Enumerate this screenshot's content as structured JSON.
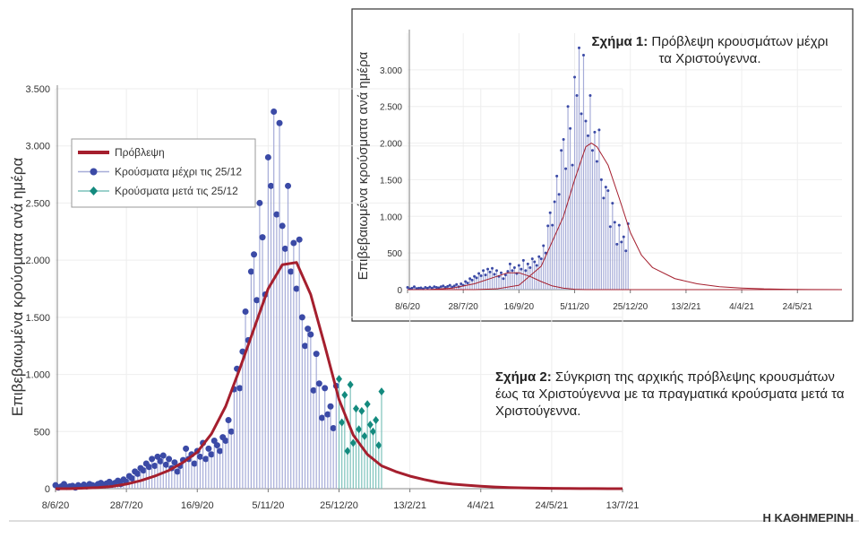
{
  "chart_data": [
    {
      "type": "line",
      "y_label": "Επιβεβαιωμένα κρούσματα ανά ημέρα",
      "annotation_label": "Σχήμα 2:",
      "annotation": "Σύγκριση της αρχικής πρόβλεψης κρουσμάτων έως τα Χριστούγεννα με τα πραγματικά κρούσματα μετά τα Χριστούγεννα.",
      "xlim": [
        0,
        400
      ],
      "xticks": [
        {
          "value": 0,
          "label": "8/6/20"
        },
        {
          "value": 50,
          "label": "28/7/20"
        },
        {
          "value": 100,
          "label": "16/9/20"
        },
        {
          "value": 150,
          "label": "5/11/20"
        },
        {
          "value": 200,
          "label": "25/12/20"
        },
        {
          "value": 250,
          "label": "13/2/21"
        },
        {
          "value": 300,
          "label": "4/4/21"
        },
        {
          "value": 350,
          "label": "24/5/21"
        },
        {
          "value": 400,
          "label": "13/7/21"
        }
      ],
      "ylim": [
        0,
        3500
      ],
      "yticks": [
        0,
        500,
        {
          "value": 1000,
          "label": "1.000"
        },
        {
          "value": 1500,
          "label": "1.500"
        },
        {
          "value": 2000,
          "label": "2.000"
        },
        {
          "value": 2500,
          "label": "2.500"
        },
        {
          "value": 3000,
          "label": "3.000"
        },
        {
          "value": 3500,
          "label": "3.500"
        }
      ],
      "grid": true,
      "legend": "upper-left",
      "series": [
        {
          "name": "Πρόβλεψη",
          "kind": "line",
          "color": "#a51f2e",
          "x": [
            0,
            10,
            20,
            30,
            40,
            50,
            60,
            70,
            80,
            90,
            100,
            110,
            120,
            130,
            140,
            150,
            160,
            170,
            180,
            190,
            200,
            210,
            220,
            230,
            240,
            250,
            260,
            270,
            280,
            290,
            300,
            310,
            320,
            330,
            340,
            350,
            360,
            370,
            380,
            390,
            400
          ],
          "values": [
            0,
            0,
            5,
            10,
            20,
            40,
            70,
            110,
            160,
            230,
            320,
            480,
            720,
            1050,
            1400,
            1750,
            1960,
            1980,
            1700,
            1250,
            780,
            470,
            300,
            200,
            150,
            110,
            80,
            55,
            40,
            30,
            22,
            15,
            10,
            7,
            5,
            3,
            2,
            1,
            1,
            0,
            0
          ]
        },
        {
          "name": "Κρούσματα μέχρι τις 25/12",
          "kind": "stem",
          "marker": "circle",
          "color": "#3b4aa6",
          "stem_color": "#a6acd8",
          "x": [
            0,
            2,
            4,
            6,
            8,
            10,
            12,
            14,
            16,
            18,
            20,
            22,
            24,
            26,
            28,
            30,
            32,
            34,
            36,
            38,
            40,
            42,
            44,
            46,
            48,
            50,
            52,
            54,
            56,
            58,
            60,
            62,
            64,
            66,
            68,
            70,
            72,
            74,
            76,
            78,
            80,
            82,
            84,
            86,
            88,
            90,
            92,
            94,
            96,
            98,
            100,
            102,
            104,
            106,
            108,
            110,
            112,
            114,
            116,
            118,
            120,
            122,
            124,
            126,
            128,
            130,
            132,
            134,
            136,
            138,
            140,
            142,
            144,
            146,
            148,
            150,
            152,
            154,
            156,
            158,
            160,
            162,
            164,
            166,
            168,
            170,
            172,
            174,
            176,
            178,
            180,
            182,
            184,
            186,
            188,
            190,
            192,
            194,
            196,
            198
          ],
          "values": [
            30,
            10,
            20,
            40,
            15,
            20,
            25,
            10,
            30,
            20,
            35,
            20,
            40,
            30,
            25,
            40,
            50,
            30,
            45,
            60,
            35,
            50,
            70,
            40,
            80,
            60,
            110,
            90,
            150,
            130,
            180,
            160,
            220,
            190,
            260,
            200,
            280,
            240,
            290,
            210,
            260,
            180,
            230,
            150,
            200,
            250,
            350,
            260,
            300,
            220,
            330,
            280,
            400,
            260,
            350,
            300,
            420,
            380,
            330,
            450,
            420,
            600,
            500,
            870,
            1050,
            880,
            1200,
            1550,
            1300,
            1900,
            2050,
            1650,
            2500,
            2200,
            1700,
            2900,
            2650,
            3300,
            2400,
            3200,
            2300,
            2100,
            2650,
            1900,
            2150,
            1750,
            2180,
            1500,
            1250,
            1400,
            1350,
            860,
            1180,
            920,
            620,
            880,
            650,
            720,
            530,
            900
          ]
        },
        {
          "name": "Κρούσματα μετά τις 25/12",
          "kind": "stem",
          "marker": "diamond",
          "color": "#138a7e",
          "stem_color": "#7cc2bb",
          "x": [
            200,
            202,
            204,
            206,
            208,
            210,
            212,
            214,
            216,
            218,
            220,
            222,
            224,
            226,
            228,
            230
          ],
          "values": [
            960,
            580,
            820,
            330,
            910,
            400,
            700,
            520,
            680,
            460,
            740,
            560,
            500,
            600,
            380,
            850
          ]
        }
      ]
    },
    {
      "type": "line",
      "title_label": "Σχήμα 1:",
      "title": "Πρόβλεψη κρουσμάτων μέχρι τα Χριστούγεννα.",
      "y_label": "Επιβεβαιωμένα κρούσματα ανά ημέρα",
      "xlim": [
        0,
        390
      ],
      "xticks": [
        {
          "value": 0,
          "label": "8/6/20"
        },
        {
          "value": 50,
          "label": "28/7/20"
        },
        {
          "value": 100,
          "label": "16/9/20"
        },
        {
          "value": 150,
          "label": "5/11/20"
        },
        {
          "value": 200,
          "label": "25/12/20"
        },
        {
          "value": 250,
          "label": "13/2/21"
        },
        {
          "value": 300,
          "label": "4/4/21"
        },
        {
          "value": 350,
          "label": "24/5/21"
        }
      ],
      "ylim": [
        0,
        3500
      ],
      "yticks": [
        0,
        500,
        {
          "value": 1000,
          "label": "1.000"
        },
        {
          "value": 1500,
          "label": "1.500"
        },
        {
          "value": 2000,
          "label": "2.000"
        },
        {
          "value": 2500,
          "label": "2.500"
        },
        {
          "value": 3000,
          "label": "3.000"
        }
      ],
      "grid": true,
      "series": [
        {
          "kind": "line",
          "color": "#a51f2e",
          "x": [
            0,
            20,
            40,
            60,
            80,
            90,
            100,
            110,
            120,
            130,
            140,
            150,
            160,
            180,
            200,
            220,
            240,
            260,
            280,
            300,
            320,
            340,
            360,
            390
          ],
          "values": [
            0,
            2,
            20,
            80,
            180,
            230,
            230,
            180,
            110,
            50,
            20,
            5,
            0,
            0,
            0,
            0,
            0,
            0,
            0,
            0,
            0,
            0,
            0,
            0
          ]
        },
        {
          "kind": "line",
          "color": "#a51f2e",
          "x": [
            0,
            60,
            80,
            100,
            120,
            140,
            150,
            160,
            165,
            170,
            180,
            190,
            200,
            210,
            220,
            240,
            260,
            280,
            300,
            320,
            340,
            360,
            390
          ],
          "values": [
            0,
            0,
            10,
            60,
            320,
            1000,
            1500,
            1950,
            2000,
            1950,
            1700,
            1250,
            780,
            470,
            300,
            150,
            80,
            40,
            22,
            10,
            5,
            2,
            0
          ]
        }
      ]
    }
  ]
}
